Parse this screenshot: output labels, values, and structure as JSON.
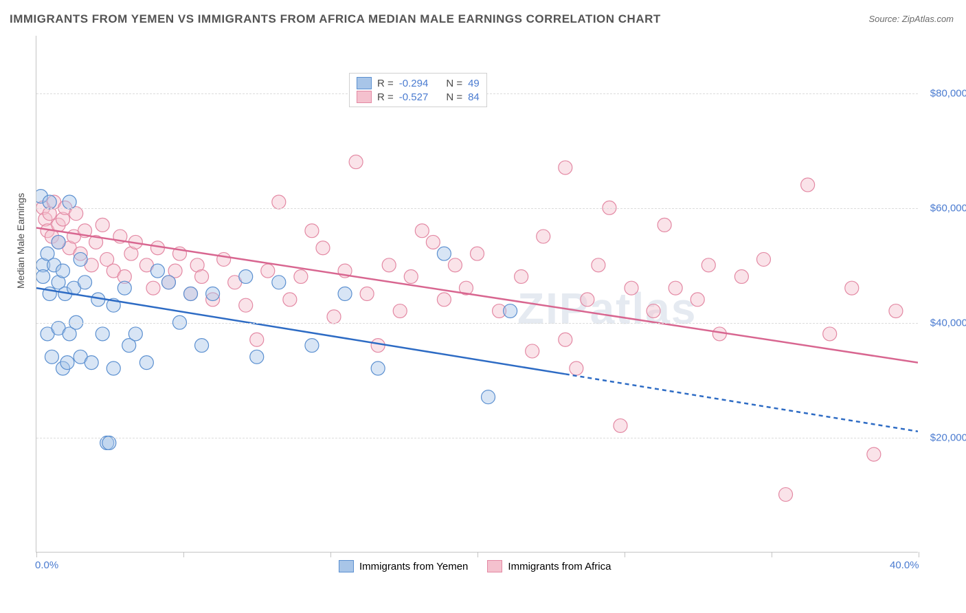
{
  "title": "IMMIGRANTS FROM YEMEN VS IMMIGRANTS FROM AFRICA MEDIAN MALE EARNINGS CORRELATION CHART",
  "source": "Source: ZipAtlas.com",
  "watermark": "ZIPatlas",
  "y_axis_label": "Median Male Earnings",
  "chart": {
    "type": "scatter-with-trendlines",
    "xlim": [
      0,
      40
    ],
    "ylim": [
      0,
      90000
    ],
    "x_ticks": [
      0,
      6.67,
      13.33,
      20,
      26.67,
      33.33,
      40
    ],
    "x_tick_labels": {
      "0": "0.0%",
      "40": "40.0%"
    },
    "y_gridlines": [
      20000,
      40000,
      60000,
      80000
    ],
    "y_tick_labels": {
      "20000": "$20,000",
      "40000": "$40,000",
      "60000": "$60,000",
      "80000": "$80,000"
    },
    "background_color": "#ffffff",
    "grid_color": "#dcdcdc",
    "marker_radius": 10,
    "marker_opacity": 0.45,
    "trend_linewidth": 2.5
  },
  "series": [
    {
      "name": "Immigrants from Yemen",
      "color_fill": "#a8c5e8",
      "color_stroke": "#5a8fd0",
      "trend_color": "#2d6bc4",
      "R": "-0.294",
      "N": "49",
      "trend_start": [
        0,
        46000
      ],
      "trend_end_solid": [
        24,
        31000
      ],
      "trend_end_dash": [
        40,
        21000
      ],
      "points": [
        [
          0.2,
          62000
        ],
        [
          0.3,
          50000
        ],
        [
          0.3,
          48000
        ],
        [
          0.5,
          52000
        ],
        [
          0.5,
          38000
        ],
        [
          0.6,
          61000
        ],
        [
          0.6,
          45000
        ],
        [
          0.7,
          34000
        ],
        [
          0.8,
          50000
        ],
        [
          1.0,
          54000
        ],
        [
          1.0,
          47000
        ],
        [
          1.0,
          39000
        ],
        [
          1.2,
          49000
        ],
        [
          1.2,
          32000
        ],
        [
          1.3,
          45000
        ],
        [
          1.4,
          33000
        ],
        [
          1.5,
          61000
        ],
        [
          1.5,
          38000
        ],
        [
          1.7,
          46000
        ],
        [
          1.8,
          40000
        ],
        [
          2.0,
          51000
        ],
        [
          2.0,
          34000
        ],
        [
          2.2,
          47000
        ],
        [
          2.5,
          33000
        ],
        [
          2.8,
          44000
        ],
        [
          3.0,
          38000
        ],
        [
          3.2,
          19000
        ],
        [
          3.3,
          19000
        ],
        [
          3.5,
          43000
        ],
        [
          3.5,
          32000
        ],
        [
          4.0,
          46000
        ],
        [
          4.2,
          36000
        ],
        [
          4.5,
          38000
        ],
        [
          5.0,
          33000
        ],
        [
          5.5,
          49000
        ],
        [
          6.0,
          47000
        ],
        [
          6.5,
          40000
        ],
        [
          7.0,
          45000
        ],
        [
          7.5,
          36000
        ],
        [
          8.0,
          45000
        ],
        [
          9.5,
          48000
        ],
        [
          10.0,
          34000
        ],
        [
          11.0,
          47000
        ],
        [
          12.5,
          36000
        ],
        [
          14.0,
          45000
        ],
        [
          15.5,
          32000
        ],
        [
          18.5,
          52000
        ],
        [
          20.5,
          27000
        ],
        [
          21.5,
          42000
        ]
      ]
    },
    {
      "name": "Immigrants from Africa",
      "color_fill": "#f4c1ce",
      "color_stroke": "#e388a3",
      "trend_color": "#d86690",
      "R": "-0.527",
      "N": "84",
      "trend_start": [
        0,
        56500
      ],
      "trend_end_solid": [
        40,
        33000
      ],
      "trend_end_dash": null,
      "points": [
        [
          0.3,
          60000
        ],
        [
          0.4,
          58000
        ],
        [
          0.5,
          56000
        ],
        [
          0.6,
          59000
        ],
        [
          0.7,
          55000
        ],
        [
          0.8,
          61000
        ],
        [
          1.0,
          57000
        ],
        [
          1.0,
          54000
        ],
        [
          1.2,
          58000
        ],
        [
          1.3,
          60000
        ],
        [
          1.5,
          53000
        ],
        [
          1.7,
          55000
        ],
        [
          1.8,
          59000
        ],
        [
          2.0,
          52000
        ],
        [
          2.2,
          56000
        ],
        [
          2.5,
          50000
        ],
        [
          2.7,
          54000
        ],
        [
          3.0,
          57000
        ],
        [
          3.2,
          51000
        ],
        [
          3.5,
          49000
        ],
        [
          3.8,
          55000
        ],
        [
          4.0,
          48000
        ],
        [
          4.3,
          52000
        ],
        [
          4.5,
          54000
        ],
        [
          5.0,
          50000
        ],
        [
          5.3,
          46000
        ],
        [
          5.5,
          53000
        ],
        [
          6.0,
          47000
        ],
        [
          6.3,
          49000
        ],
        [
          6.5,
          52000
        ],
        [
          7.0,
          45000
        ],
        [
          7.3,
          50000
        ],
        [
          7.5,
          48000
        ],
        [
          8.0,
          44000
        ],
        [
          8.5,
          51000
        ],
        [
          9.0,
          47000
        ],
        [
          9.5,
          43000
        ],
        [
          10.0,
          37000
        ],
        [
          10.5,
          49000
        ],
        [
          11.0,
          61000
        ],
        [
          11.5,
          44000
        ],
        [
          12.0,
          48000
        ],
        [
          12.5,
          56000
        ],
        [
          13.0,
          53000
        ],
        [
          13.5,
          41000
        ],
        [
          14.0,
          49000
        ],
        [
          14.5,
          68000
        ],
        [
          15.0,
          45000
        ],
        [
          15.5,
          36000
        ],
        [
          16.0,
          50000
        ],
        [
          16.5,
          42000
        ],
        [
          17.0,
          48000
        ],
        [
          17.5,
          56000
        ],
        [
          18.0,
          54000
        ],
        [
          18.5,
          44000
        ],
        [
          19.0,
          50000
        ],
        [
          19.5,
          46000
        ],
        [
          20.0,
          52000
        ],
        [
          21.0,
          42000
        ],
        [
          22.0,
          48000
        ],
        [
          22.5,
          35000
        ],
        [
          23.0,
          55000
        ],
        [
          24.0,
          67000
        ],
        [
          24.0,
          37000
        ],
        [
          24.5,
          32000
        ],
        [
          25.0,
          44000
        ],
        [
          25.5,
          50000
        ],
        [
          26.0,
          60000
        ],
        [
          26.5,
          22000
        ],
        [
          27.0,
          46000
        ],
        [
          28.0,
          42000
        ],
        [
          28.5,
          57000
        ],
        [
          29.0,
          46000
        ],
        [
          30.0,
          44000
        ],
        [
          30.5,
          50000
        ],
        [
          31.0,
          38000
        ],
        [
          32.0,
          48000
        ],
        [
          33.0,
          51000
        ],
        [
          34.0,
          10000
        ],
        [
          35.0,
          64000
        ],
        [
          36.0,
          38000
        ],
        [
          37.0,
          46000
        ],
        [
          38.0,
          17000
        ],
        [
          39.0,
          42000
        ]
      ]
    }
  ],
  "legend_labels": {
    "R_prefix": "R = ",
    "N_prefix": "N = "
  }
}
